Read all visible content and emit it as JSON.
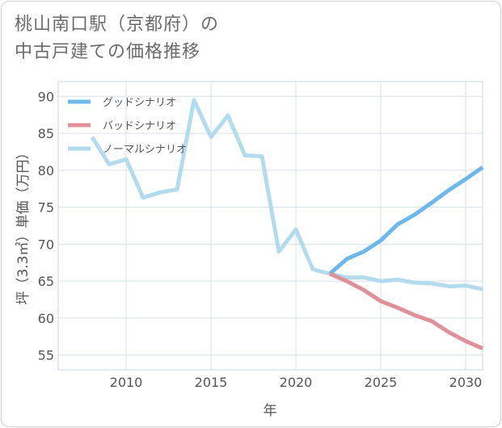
{
  "title_lines": [
    "桃山南口駅（京都府）の",
    "中古戸建ての価格推移"
  ],
  "chart_data": {
    "type": "line",
    "xlabel": "年",
    "ylabel": "坪（3.3㎡）単価（万円）",
    "xlim": [
      2006,
      2031
    ],
    "ylim": [
      53,
      92
    ],
    "xticks": [
      2010,
      2015,
      2020,
      2025,
      2030
    ],
    "yticks": [
      55,
      60,
      65,
      70,
      75,
      80,
      85,
      90
    ],
    "grid": true,
    "legend_position": "top-left",
    "series": [
      {
        "name": "グッドシナリオ",
        "color": "#6cb8ec",
        "x": [
          2022,
          2023,
          2024,
          2025,
          2026,
          2027,
          2028,
          2029,
          2030,
          2031
        ],
        "y": [
          66.0,
          68.0,
          69.0,
          70.5,
          72.7,
          74.0,
          75.6,
          77.3,
          78.8,
          80.4
        ]
      },
      {
        "name": "バッドシナリオ",
        "color": "#e09098",
        "x": [
          2022,
          2023,
          2024,
          2025,
          2026,
          2027,
          2028,
          2029,
          2030,
          2031
        ],
        "y": [
          66.0,
          65.0,
          63.8,
          62.3,
          61.4,
          60.4,
          59.6,
          58.1,
          56.9,
          55.9
        ]
      },
      {
        "name": "ノーマルシナリオ",
        "color": "#b2dcee",
        "x": [
          2008,
          2009,
          2010,
          2011,
          2012,
          2013,
          2014,
          2015,
          2016,
          2017,
          2018,
          2019,
          2020,
          2021,
          2022,
          2023,
          2024,
          2025,
          2026,
          2027,
          2028,
          2029,
          2030,
          2031
        ],
        "y": [
          84.5,
          80.8,
          81.5,
          76.3,
          77.0,
          77.4,
          89.5,
          84.5,
          87.4,
          82.0,
          81.9,
          69.0,
          72.0,
          66.6,
          66.0,
          65.5,
          65.5,
          65.0,
          65.2,
          64.8,
          64.7,
          64.3,
          64.4,
          63.9
        ]
      }
    ]
  }
}
